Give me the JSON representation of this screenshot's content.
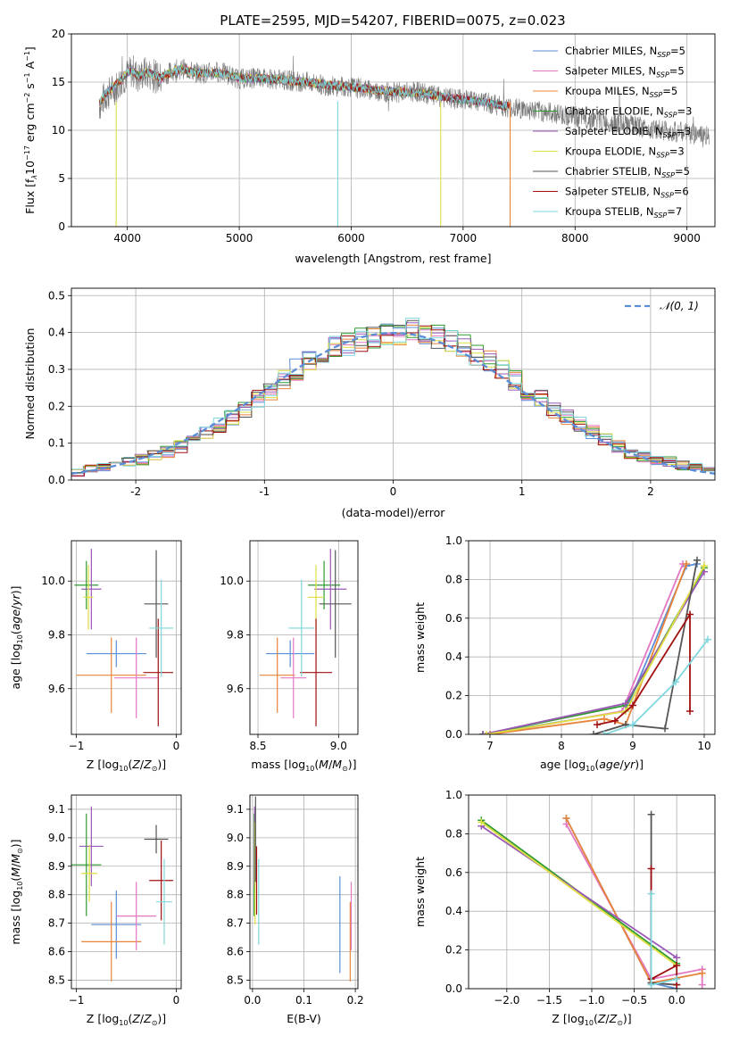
{
  "figure_title": "PLATE=2595, MJD=54207, FIBERID=0075, z=0.023",
  "colors": {
    "c0": "#5b8ed6",
    "c1": "#e8843a",
    "c2": "#2f9a2f",
    "c3": "#c33a3a",
    "c4": "#9b59b6",
    "c5": "#8c564b",
    "c6": "#e377c2",
    "c7": "#555555",
    "c8": "#bcbd22",
    "c9": "#7fd7dd",
    "c10": "#a01010",
    "grid": "#b0b0b0"
  },
  "legend_spectrum": [
    {
      "label": "Chabrier MILES, N",
      "sub": "SSP",
      "tail": "=5",
      "color": "#5b8ed6"
    },
    {
      "label": "Salpeter MILES, N",
      "sub": "SSP",
      "tail": "=5",
      "color": "#e377c2"
    },
    {
      "label": "Kroupa MILES, N",
      "sub": "SSP",
      "tail": "=5",
      "color": "#e8843a"
    },
    {
      "label": "Chabrier ELODIE, N",
      "sub": "SSP",
      "tail": "=3",
      "color": "#2f9a2f"
    },
    {
      "label": "Salpeter ELODIE, N",
      "sub": "SSP",
      "tail": "=3",
      "color": "#9b59b6"
    },
    {
      "label": "Kroupa ELODIE, N",
      "sub": "SSP",
      "tail": "=3",
      "color": "#dede40"
    },
    {
      "label": "Chabrier STELIB, N",
      "sub": "SSP",
      "tail": "=5",
      "color": "#555555"
    },
    {
      "label": "Salpeter STELIB, N",
      "sub": "SSP",
      "tail": "=6",
      "color": "#a01010"
    },
    {
      "label": "Kroupa STELIB, N",
      "sub": "SSP",
      "tail": "=7",
      "color": "#7fd7dd"
    }
  ],
  "chart_data": [
    {
      "id": "spectrum",
      "type": "line",
      "xlabel": "wavelength [Angstrom, rest frame]",
      "ylabel_main": "Flux [f",
      "ylabel_rest": "10",
      "ylabel_tail": " erg cm",
      "ylabel_tail2": " s",
      "ylabel_tail3": " A",
      "ylabel_sups": [
        "λ",
        "−17",
        "−2",
        "−1",
        "−1"
      ],
      "xlim": [
        3500,
        9250
      ],
      "ylim": [
        0,
        20
      ],
      "xticks": [
        4000,
        5000,
        6000,
        7000,
        8000,
        9000
      ],
      "yticks": [
        0,
        5,
        10,
        15,
        20
      ],
      "data_series_gray": {
        "x": [
          3750,
          3800,
          3850,
          3900,
          3950,
          4000,
          4050,
          4100,
          4150,
          4200,
          4300,
          4400,
          4500,
          4600,
          4700,
          4800,
          4900,
          5000,
          5200,
          5400,
          5600,
          5800,
          6000,
          6200,
          6400,
          6600,
          6800,
          7000,
          7200,
          7400,
          7600,
          7800,
          8000,
          8200,
          8400,
          8600,
          8800,
          9000,
          9200
        ],
        "y": [
          12.5,
          13.5,
          14.0,
          14.5,
          15.2,
          15.8,
          16.2,
          15.4,
          16.0,
          15.8,
          15.3,
          16.2,
          16.4,
          16.0,
          15.9,
          16.1,
          15.8,
          15.3,
          15.5,
          15.2,
          15.0,
          14.6,
          14.5,
          14.1,
          13.9,
          14.0,
          13.4,
          13.2,
          12.9,
          12.4,
          12.1,
          11.8,
          11.4,
          11.0,
          10.7,
          10.3,
          10.0,
          9.7,
          9.4
        ]
      },
      "model_series": {
        "x": [
          3750,
          3800,
          3850,
          3900,
          3950,
          4000,
          4050,
          4100,
          4150,
          4200,
          4300,
          4400,
          4500,
          4600,
          4700,
          4800,
          4900,
          5000,
          5200,
          5400,
          5600,
          5800,
          6000,
          6200,
          6400,
          6600,
          6800,
          7000,
          7200,
          7400
        ],
        "y": [
          12.8,
          13.8,
          14.2,
          14.8,
          15.3,
          16.0,
          16.1,
          15.6,
          16.0,
          15.9,
          15.4,
          16.1,
          16.3,
          16.0,
          15.9,
          16.0,
          15.8,
          15.4,
          15.4,
          15.2,
          15.0,
          14.7,
          14.5,
          14.2,
          14.0,
          13.9,
          13.5,
          13.2,
          12.9,
          12.5
        ]
      }
    },
    {
      "id": "residuals",
      "type": "line",
      "xlabel": "(data-model)/error",
      "ylabel": "Normed distribution",
      "legend": "𝒩(0, 1)",
      "xlim": [
        -2.5,
        2.5
      ],
      "ylim": [
        0,
        0.52
      ],
      "xticks": [
        -2,
        -1,
        0,
        1,
        2
      ],
      "yticks": [
        0.0,
        0.1,
        0.2,
        0.3,
        0.4,
        0.5
      ],
      "hist_x": [
        -2.5,
        -2.4,
        -2.3,
        -2.2,
        -2.1,
        -2.0,
        -1.9,
        -1.8,
        -1.7,
        -1.6,
        -1.5,
        -1.4,
        -1.3,
        -1.2,
        -1.1,
        -1.0,
        -0.9,
        -0.8,
        -0.7,
        -0.6,
        -0.5,
        -0.4,
        -0.3,
        -0.2,
        -0.1,
        0.0,
        0.1,
        0.2,
        0.3,
        0.4,
        0.5,
        0.6,
        0.7,
        0.8,
        0.9,
        1.0,
        1.1,
        1.2,
        1.3,
        1.4,
        1.5,
        1.6,
        1.7,
        1.8,
        1.9,
        2.0,
        2.1,
        2.2,
        2.3,
        2.4
      ],
      "hist_y": [
        0.02,
        0.03,
        0.035,
        0.04,
        0.05,
        0.055,
        0.065,
        0.075,
        0.09,
        0.11,
        0.13,
        0.15,
        0.17,
        0.19,
        0.22,
        0.24,
        0.27,
        0.3,
        0.32,
        0.34,
        0.36,
        0.37,
        0.38,
        0.39,
        0.4,
        0.4,
        0.41,
        0.4,
        0.39,
        0.38,
        0.37,
        0.34,
        0.32,
        0.3,
        0.27,
        0.24,
        0.22,
        0.19,
        0.17,
        0.15,
        0.13,
        0.11,
        0.09,
        0.075,
        0.065,
        0.055,
        0.05,
        0.04,
        0.035,
        0.03
      ]
    },
    {
      "id": "age_vs_Z",
      "type": "scatter",
      "xlabel": "Z [log",
      "ylabel": "age  [log",
      "xlim": [
        -1.05,
        0.05
      ],
      "ylim": [
        9.43,
        10.15
      ],
      "xticks": [
        -1,
        0
      ],
      "xtick_labels": [
        "−1",
        "0"
      ],
      "yticks": [
        9.6,
        9.8,
        10.0
      ],
      "points": [
        {
          "x": -0.9,
          "y": 9.985,
          "xerr": 0.12,
          "yerr": 0.09,
          "color": "#2f9a2f"
        },
        {
          "x": -0.85,
          "y": 9.97,
          "xerr": 0.1,
          "yerr": 0.15,
          "color": "#9b59b6"
        },
        {
          "x": -0.88,
          "y": 9.94,
          "xerr": 0.05,
          "yerr": 0.12,
          "color": "#dede40"
        },
        {
          "x": -0.6,
          "y": 9.73,
          "xerr": 0.3,
          "yerr": 0.05,
          "color": "#5b8ed6"
        },
        {
          "x": -0.65,
          "y": 9.65,
          "xerr": 0.35,
          "yerr": 0.14,
          "color": "#e8843a"
        },
        {
          "x": -0.4,
          "y": 9.64,
          "xerr": 0.22,
          "yerr": 0.15,
          "color": "#e377c2"
        },
        {
          "x": -0.2,
          "y": 9.915,
          "xerr": 0.12,
          "yerr": 0.2,
          "color": "#555555"
        },
        {
          "x": -0.18,
          "y": 9.66,
          "xerr": 0.15,
          "yerr": 0.2,
          "color": "#a01010"
        },
        {
          "x": -0.15,
          "y": 9.825,
          "xerr": 0.12,
          "yerr": 0.18,
          "color": "#7fd7dd"
        }
      ]
    },
    {
      "id": "age_vs_mass",
      "type": "scatter",
      "xlabel": "mass [log",
      "xlim": [
        8.45,
        9.12
      ],
      "ylim": [
        9.43,
        10.15
      ],
      "xticks": [
        8.5,
        9.0
      ],
      "xtick_labels": [
        "8.5",
        "9.0"
      ],
      "yticks": [
        9.6,
        9.8,
        10.0
      ],
      "points": [
        {
          "x": 8.91,
          "y": 9.985,
          "xerr": 0.1,
          "yerr": 0.09,
          "color": "#2f9a2f"
        },
        {
          "x": 8.95,
          "y": 9.97,
          "xerr": 0.1,
          "yerr": 0.15,
          "color": "#9b59b6"
        },
        {
          "x": 8.86,
          "y": 9.94,
          "xerr": 0.05,
          "yerr": 0.12,
          "color": "#dede40"
        },
        {
          "x": 8.7,
          "y": 9.73,
          "xerr": 0.15,
          "yerr": 0.05,
          "color": "#5b8ed6"
        },
        {
          "x": 8.62,
          "y": 9.65,
          "xerr": 0.11,
          "yerr": 0.14,
          "color": "#e8843a"
        },
        {
          "x": 8.72,
          "y": 9.64,
          "xerr": 0.08,
          "yerr": 0.15,
          "color": "#e377c2"
        },
        {
          "x": 8.98,
          "y": 9.915,
          "xerr": 0.1,
          "yerr": 0.2,
          "color": "#555555"
        },
        {
          "x": 8.86,
          "y": 9.66,
          "xerr": 0.1,
          "yerr": 0.2,
          "color": "#a01010"
        },
        {
          "x": 8.77,
          "y": 9.825,
          "xerr": 0.08,
          "yerr": 0.18,
          "color": "#7fd7dd"
        }
      ]
    },
    {
      "id": "weight_vs_age",
      "type": "line",
      "xlabel": "age  [log",
      "ylabel": "mass weight",
      "xlim": [
        6.7,
        10.15
      ],
      "ylim": [
        0,
        1.0
      ],
      "xticks": [
        7,
        8,
        9,
        10
      ],
      "yticks": [
        0.0,
        0.2,
        0.4,
        0.6,
        0.8,
        1.0
      ],
      "series": [
        {
          "color": "#5b8ed6",
          "x": [
            6.9,
            8.9,
            9.75,
            9.9
          ],
          "y": [
            0.0,
            0.12,
            0.87,
            0.88
          ]
        },
        {
          "color": "#e377c2",
          "x": [
            7.0,
            8.85,
            9.7
          ],
          "y": [
            0.0,
            0.12,
            0.88
          ]
        },
        {
          "color": "#e8843a",
          "x": [
            7.0,
            8.6,
            8.9,
            9.75
          ],
          "y": [
            0.0,
            0.08,
            0.05,
            0.88
          ]
        },
        {
          "color": "#2f9a2f",
          "x": [
            6.9,
            8.9,
            10.0
          ],
          "y": [
            0.0,
            0.15,
            0.86
          ]
        },
        {
          "color": "#9b59b6",
          "x": [
            6.9,
            8.9,
            10.0
          ],
          "y": [
            0.0,
            0.16,
            0.84
          ]
        },
        {
          "color": "#dede40",
          "x": [
            6.95,
            8.9,
            10.0
          ],
          "y": [
            0.0,
            0.12,
            0.87
          ]
        },
        {
          "color": "#555555",
          "x": [
            8.45,
            8.9,
            9.45,
            9.9
          ],
          "y": [
            0.0,
            0.05,
            0.03,
            0.9
          ]
        },
        {
          "color": "#a01010",
          "x": [
            8.5,
            8.75,
            9.0,
            9.8,
            9.8
          ],
          "y": [
            0.05,
            0.07,
            0.15,
            0.62,
            0.12
          ]
        },
        {
          "color": "#7fd7dd",
          "x": [
            8.6,
            9.0,
            9.6,
            10.05
          ],
          "y": [
            0.0,
            0.05,
            0.27,
            0.49
          ]
        }
      ]
    },
    {
      "id": "mass_vs_Z",
      "type": "scatter",
      "xlabel": "Z [log",
      "ylabel": "mass [log",
      "xlim": [
        -1.05,
        0.05
      ],
      "ylim": [
        8.47,
        9.15
      ],
      "xticks": [
        -1,
        0
      ],
      "xtick_labels": [
        "−1",
        "0"
      ],
      "yticks": [
        8.5,
        8.6,
        8.7,
        8.8,
        8.9,
        9.0,
        9.1
      ],
      "points": [
        {
          "x": -0.9,
          "y": 8.905,
          "xerr": 0.15,
          "yerr": 0.18,
          "color": "#2f9a2f"
        },
        {
          "x": -0.85,
          "y": 8.97,
          "xerr": 0.12,
          "yerr": 0.14,
          "color": "#9b59b6"
        },
        {
          "x": -0.87,
          "y": 8.875,
          "xerr": 0.08,
          "yerr": 0.1,
          "color": "#dede40"
        },
        {
          "x": -0.6,
          "y": 8.695,
          "xerr": 0.25,
          "yerr": 0.12,
          "color": "#5b8ed6"
        },
        {
          "x": -0.65,
          "y": 8.635,
          "xerr": 0.3,
          "yerr": 0.14,
          "color": "#e8843a"
        },
        {
          "x": -0.4,
          "y": 8.725,
          "xerr": 0.2,
          "yerr": 0.12,
          "color": "#e377c2"
        },
        {
          "x": -0.2,
          "y": 8.995,
          "xerr": 0.12,
          "yerr": 0.05,
          "color": "#555555"
        },
        {
          "x": -0.15,
          "y": 8.85,
          "xerr": 0.12,
          "yerr": 0.14,
          "color": "#a01010"
        },
        {
          "x": -0.12,
          "y": 8.775,
          "xerr": 0.08,
          "yerr": 0.15,
          "color": "#7fd7dd"
        }
      ]
    },
    {
      "id": "mass_vs_ebv",
      "type": "scatter",
      "xlabel": "E(B-V)",
      "xlim": [
        -0.005,
        0.205
      ],
      "ylim": [
        8.47,
        9.15
      ],
      "xticks": [
        0.0,
        0.1,
        0.2
      ],
      "xtick_labels": [
        "0.0",
        "0.1",
        "0.2"
      ],
      "yticks": [
        8.5,
        8.6,
        8.7,
        8.8,
        8.9,
        9.0,
        9.1
      ],
      "points": [
        {
          "x": 0.003,
          "y": 8.905,
          "yerr": 0.18,
          "color": "#2f9a2f"
        },
        {
          "x": 0.004,
          "y": 8.97,
          "yerr": 0.14,
          "color": "#9b59b6"
        },
        {
          "x": 0.005,
          "y": 8.875,
          "yerr": 0.18,
          "color": "#dede40"
        },
        {
          "x": 0.006,
          "y": 8.995,
          "yerr": 0.15,
          "color": "#555555"
        },
        {
          "x": 0.008,
          "y": 8.85,
          "yerr": 0.12,
          "color": "#a01010"
        },
        {
          "x": 0.012,
          "y": 8.775,
          "yerr": 0.15,
          "color": "#7fd7dd"
        },
        {
          "x": 0.17,
          "y": 8.695,
          "yerr": 0.17,
          "color": "#5b8ed6"
        },
        {
          "x": 0.19,
          "y": 8.635,
          "yerr": 0.14,
          "color": "#e8843a"
        },
        {
          "x": 0.192,
          "y": 8.725,
          "yerr": 0.12,
          "color": "#e377c2"
        }
      ]
    },
    {
      "id": "weight_vs_Z",
      "type": "line",
      "xlabel": "Z [log",
      "ylabel": "mass weight",
      "xlim": [
        -2.45,
        0.45
      ],
      "ylim": [
        0,
        1.0
      ],
      "xticks": [
        -2.0,
        -1.5,
        -1.0,
        -0.5,
        0.0
      ],
      "xtick_labels": [
        "−2.0",
        "−1.5",
        "−1.0",
        "−0.5",
        "0.0"
      ],
      "yticks": [
        0.0,
        0.2,
        0.4,
        0.6,
        0.8,
        1.0
      ],
      "series": [
        {
          "color": "#5b8ed6",
          "x": [
            -1.3,
            -0.3,
            0.0
          ],
          "y": [
            0.88,
            0.03,
            0.0
          ]
        },
        {
          "color": "#e377c2",
          "x": [
            -1.3,
            -0.3,
            0.3,
            0.3
          ],
          "y": [
            0.85,
            0.05,
            0.1,
            0.02
          ]
        },
        {
          "color": "#e8843a",
          "x": [
            -1.3,
            -0.3,
            0.3
          ],
          "y": [
            0.88,
            0.03,
            0.08
          ]
        },
        {
          "color": "#2f9a2f",
          "x": [
            -2.3,
            0.0
          ],
          "y": [
            0.87,
            0.13
          ]
        },
        {
          "color": "#9b59b6",
          "x": [
            -2.3,
            0.0
          ],
          "y": [
            0.84,
            0.16
          ]
        },
        {
          "color": "#dede40",
          "x": [
            -2.3,
            0.0
          ],
          "y": [
            0.86,
            0.12
          ]
        },
        {
          "color": "#555555",
          "x": [
            -0.3,
            -0.3,
            0.0
          ],
          "y": [
            0.9,
            0.03,
            0.02
          ]
        },
        {
          "color": "#a01010",
          "x": [
            -0.3,
            -0.3,
            0.0,
            0.0
          ],
          "y": [
            0.62,
            0.05,
            0.12,
            0.02
          ]
        },
        {
          "color": "#7fd7dd",
          "x": [
            -0.3,
            -0.3,
            0.0
          ],
          "y": [
            0.49,
            0.02,
            0.05
          ]
        }
      ]
    }
  ]
}
